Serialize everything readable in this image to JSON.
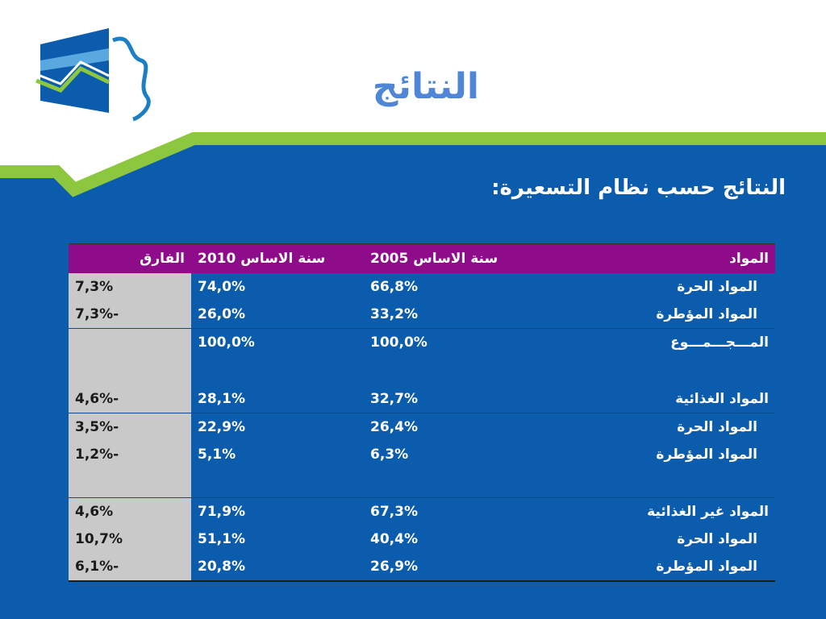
{
  "title": "النتائج",
  "subtitle": "النتائج حسب نظام التسعيرة:",
  "colors": {
    "background_blue": "#0b5cad",
    "accent_green": "#8dc63f",
    "title_blue": "#4f86d6",
    "header_purple": "#8e0c8a",
    "diff_column_gray": "#c9c9c9"
  },
  "table": {
    "headers": {
      "item": "المواد",
      "base2005": "سنة الاساس 2005",
      "base2010": "سنة الاساس 2010",
      "diff": "الفارق"
    },
    "rows": [
      {
        "item": "المواد الحرة",
        "base2005": "66,8%",
        "base2010": "74,0%",
        "diff": "7,3%"
      },
      {
        "item": "المواد المؤطرة",
        "base2005": "33,2%",
        "base2010": "26,0%",
        "diff": "-7,3%"
      },
      {
        "item": "المـــجـــمـــوع",
        "base2005": "100,0%",
        "base2010": "100,0%",
        "diff": ""
      },
      {
        "item": "المواد الغذائية",
        "base2005": "32,7%",
        "base2010": "28,1%",
        "diff": "-4,6%"
      },
      {
        "item": "المواد الحرة",
        "base2005": "26,4%",
        "base2010": "22,9%",
        "diff": "-3,5%"
      },
      {
        "item": "المواد المؤطرة",
        "base2005": "6,3%",
        "base2010": "5,1%",
        "diff": "-1,2%"
      },
      {
        "item": "المواد غير الغذائية",
        "base2005": "67,3%",
        "base2010": "71,9%",
        "diff": "4,6%"
      },
      {
        "item": "المواد الحرة",
        "base2005": "40,4%",
        "base2010": "51,1%",
        "diff": "10,7%"
      },
      {
        "item": "المواد المؤطرة",
        "base2005": "26,9%",
        "base2010": "20,8%",
        "diff": "-6,1%"
      }
    ]
  }
}
